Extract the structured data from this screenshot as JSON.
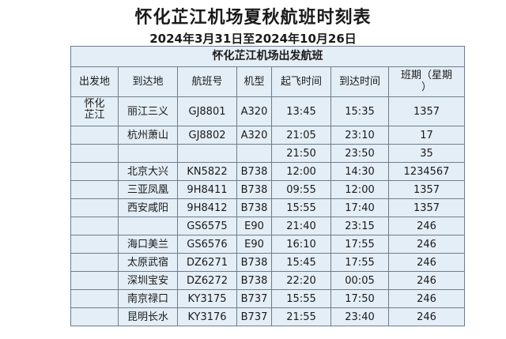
{
  "title": "怀化芷江机场夏秋航班时刻表",
  "subtitle": "2024年3月31日至2024年10月26日",
  "table": {
    "caption": "怀化芷江机场出发航班",
    "headers": [
      "出发地",
      "到达地",
      "航班号",
      "机型",
      "起飞时间",
      "到达时间",
      "班期（星期\n）"
    ],
    "rows": [
      [
        "怀化\n芷江",
        "丽江三义",
        "GJ8801",
        "A320",
        "13:45",
        "15:35",
        "1357"
      ],
      [
        "",
        "杭州萧山",
        "GJ8802",
        "A320",
        "21:05",
        "23:10",
        "17"
      ],
      [
        "",
        "",
        "",
        "",
        "21:50",
        "23:50",
        "35"
      ],
      [
        "",
        "北京大兴",
        "KN5822",
        "B738",
        "12:00",
        "14:30",
        "1234567"
      ],
      [
        "",
        "三亚凤凰",
        "9H8411",
        "B738",
        "09:55",
        "12:00",
        "1357"
      ],
      [
        "",
        "西安咸阳",
        "9H8412",
        "B738",
        "15:55",
        "17:40",
        "1357"
      ],
      [
        "",
        "",
        "GS6575",
        "E90",
        "21:40",
        "23:15",
        "246"
      ],
      [
        "",
        "海口美兰",
        "GS6576",
        "E90",
        "16:10",
        "17:55",
        "246"
      ],
      [
        "",
        "太原武宿",
        "DZ6271",
        "B738",
        "15:45",
        "17:55",
        "246"
      ],
      [
        "",
        "深圳宝安",
        "DZ6272",
        "B738",
        "22:20",
        "00:05",
        "246"
      ],
      [
        "",
        "南京禄口",
        "KY3175",
        "B737",
        "15:55",
        "17:50",
        "246"
      ],
      [
        "",
        "昆明长水",
        "KY3176",
        "B737",
        "21:55",
        "23:40",
        "246"
      ]
    ]
  }
}
